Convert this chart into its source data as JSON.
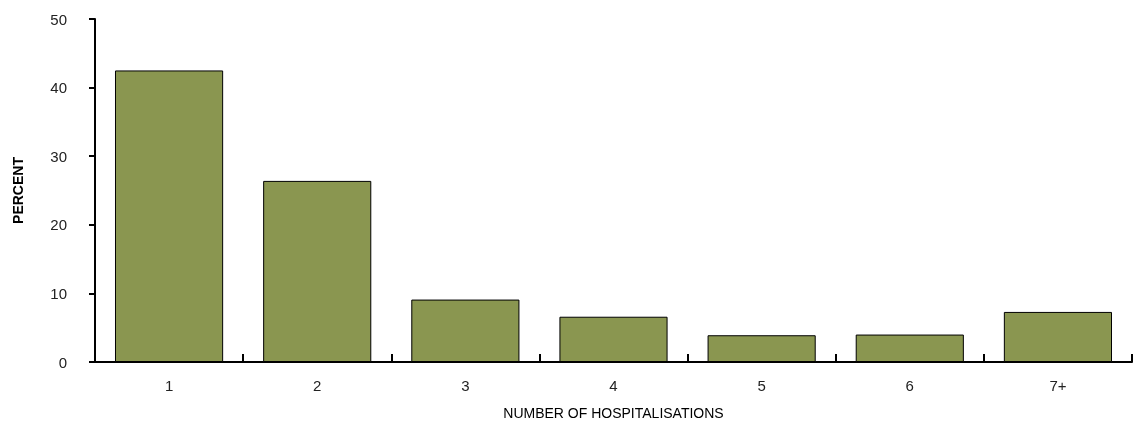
{
  "chart_data": {
    "type": "bar",
    "xlabel": "NUMBER OF HOSPITALISATIONS",
    "ylabel": "PERCENT",
    "categories": [
      "1",
      "2",
      "3",
      "4",
      "5",
      "6",
      "7+"
    ],
    "values": [
      42.5,
      26.4,
      9.1,
      6.6,
      3.9,
      4.0,
      7.3
    ],
    "color": "#8a9650",
    "ylim": [
      0,
      50
    ],
    "yticks": [
      0,
      10,
      20,
      30,
      40,
      50
    ],
    "grid": false
  }
}
